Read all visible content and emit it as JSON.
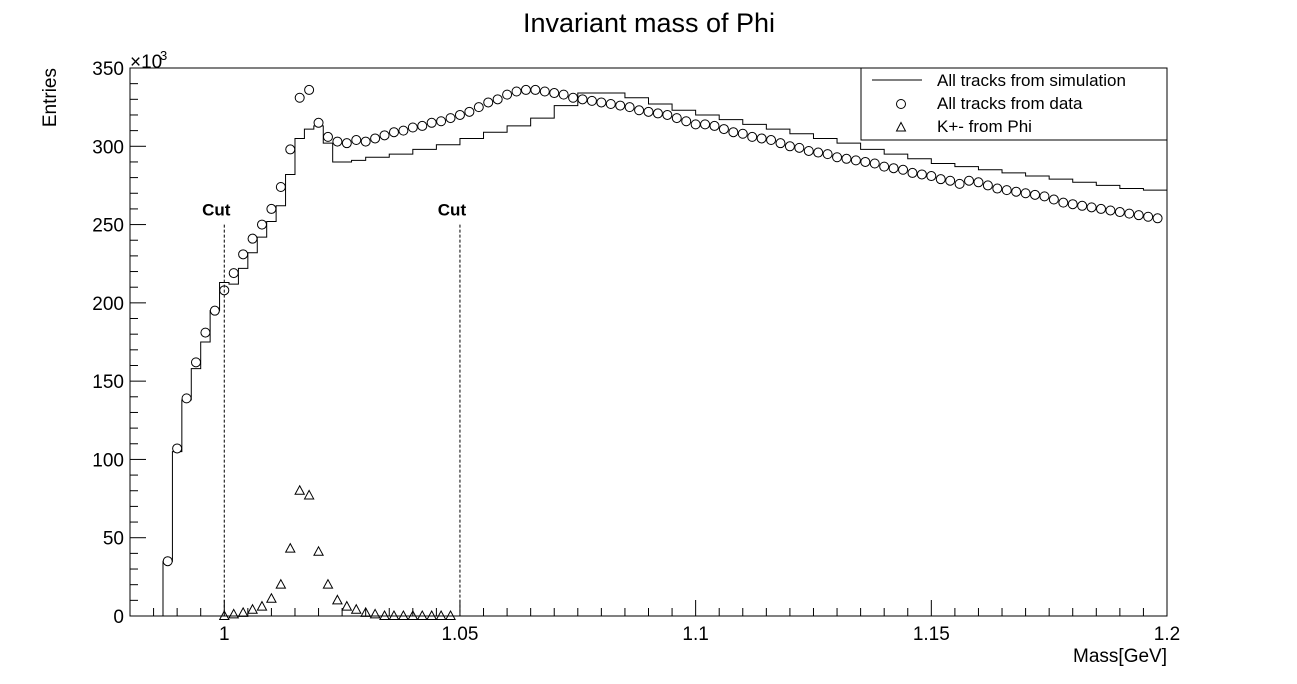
{
  "chart_data": {
    "type": "scatter",
    "title": "Invariant mass of Phi",
    "xlabel": "Mass[GeV]",
    "ylabel": "Entries",
    "y_exponent_label": "×10",
    "y_exponent": "3",
    "xlim": [
      0.98,
      1.2
    ],
    "ylim": [
      0,
      350
    ],
    "x_ticks": [
      1,
      1.05,
      1.1,
      1.15,
      1.2
    ],
    "x_tick_labels": [
      "1",
      "1.05",
      "1.1",
      "1.15",
      "1.2"
    ],
    "y_ticks": [
      0,
      50,
      100,
      150,
      200,
      250,
      300,
      350
    ],
    "y_tick_labels": [
      "0",
      "50",
      "100",
      "150",
      "200",
      "250",
      "300",
      "350"
    ],
    "grid": false,
    "legend_position": "top-right",
    "cut_lines": [
      {
        "x": 1.0,
        "y_top": 250,
        "label": "Cut"
      },
      {
        "x": 1.05,
        "y_top": 250,
        "label": "Cut"
      }
    ],
    "bin_edges": [
      0.987,
      0.989,
      0.991,
      0.993,
      0.995,
      0.997,
      0.999,
      1.001,
      1.003,
      1.005,
      1.007,
      1.009,
      1.011,
      1.013,
      1.015,
      1.017,
      1.019,
      1.021,
      1.023,
      1.025,
      1.027,
      1.03,
      1.035,
      1.04,
      1.045,
      1.05,
      1.055,
      1.06,
      1.065,
      1.07,
      1.075,
      1.08,
      1.085,
      1.09,
      1.095,
      1.1,
      1.105,
      1.11,
      1.115,
      1.12,
      1.125,
      1.13,
      1.135,
      1.14,
      1.145,
      1.15,
      1.155,
      1.16,
      1.165,
      1.17,
      1.175,
      1.18,
      1.185,
      1.19,
      1.195,
      1.2
    ],
    "series": [
      {
        "name": "All tracks from simulation",
        "style": "step-line",
        "values": [
          35,
          105,
          138,
          158,
          175,
          195,
          213,
          212,
          222,
          232,
          242,
          252,
          262,
          282,
          305,
          311,
          313,
          302,
          290,
          290,
          291,
          293,
          295,
          298,
          301,
          305,
          309,
          313,
          318,
          326,
          334,
          334,
          331,
          327,
          323,
          320,
          317,
          314,
          311,
          308,
          305,
          302,
          298,
          295,
          292,
          289,
          287,
          285,
          283,
          281,
          279,
          277,
          275,
          273,
          272
        ]
      },
      {
        "name": "All tracks from data",
        "style": "circle",
        "x": [
          0.988,
          0.99,
          0.992,
          0.994,
          0.996,
          0.998,
          1.0,
          1.002,
          1.004,
          1.006,
          1.008,
          1.01,
          1.012,
          1.014,
          1.016,
          1.018,
          1.02,
          1.022,
          1.024,
          1.026,
          1.028,
          1.03,
          1.032,
          1.034,
          1.036,
          1.038,
          1.04,
          1.042,
          1.044,
          1.046,
          1.048,
          1.05,
          1.052,
          1.054,
          1.056,
          1.058,
          1.06,
          1.062,
          1.064,
          1.066,
          1.068,
          1.07,
          1.072,
          1.074,
          1.076,
          1.078,
          1.08,
          1.082,
          1.084,
          1.086,
          1.088,
          1.09,
          1.092,
          1.094,
          1.096,
          1.098,
          1.1,
          1.102,
          1.104,
          1.106,
          1.108,
          1.11,
          1.112,
          1.114,
          1.116,
          1.118,
          1.12,
          1.122,
          1.124,
          1.126,
          1.128,
          1.13,
          1.132,
          1.134,
          1.136,
          1.138,
          1.14,
          1.142,
          1.144,
          1.146,
          1.148,
          1.15,
          1.152,
          1.154,
          1.156,
          1.158,
          1.16,
          1.162,
          1.164,
          1.166,
          1.168,
          1.17,
          1.172,
          1.174,
          1.176,
          1.178,
          1.18,
          1.182,
          1.184,
          1.186,
          1.188,
          1.19,
          1.192,
          1.194,
          1.196,
          1.198
        ],
        "values": [
          35,
          107,
          139,
          162,
          181,
          195,
          208,
          219,
          231,
          241,
          250,
          260,
          274,
          298,
          331,
          336,
          315,
          306,
          303,
          302,
          304,
          303,
          305,
          307,
          309,
          310,
          312,
          313,
          315,
          316,
          318,
          320,
          322,
          325,
          328,
          330,
          333,
          335,
          336,
          336,
          335,
          334,
          333,
          331,
          330,
          329,
          328,
          327,
          326,
          325,
          323,
          322,
          321,
          320,
          318,
          316,
          314,
          314,
          313,
          311,
          309,
          308,
          306,
          305,
          304,
          302,
          300,
          299,
          297,
          296,
          295,
          293,
          292,
          291,
          290,
          289,
          287,
          286,
          285,
          283,
          282,
          281,
          279,
          278,
          276,
          278,
          277,
          275,
          273,
          272,
          271,
          270,
          269,
          268,
          266,
          264,
          263,
          262,
          261,
          260,
          259,
          258,
          257,
          256,
          255,
          254
        ]
      },
      {
        "name": "K+- from Phi",
        "style": "triangle",
        "x": [
          1.0,
          1.002,
          1.004,
          1.006,
          1.008,
          1.01,
          1.012,
          1.014,
          1.016,
          1.018,
          1.02,
          1.022,
          1.024,
          1.026,
          1.028,
          1.03,
          1.032,
          1.034,
          1.036,
          1.038,
          1.04,
          1.042,
          1.044,
          1.046,
          1.048
        ],
        "values": [
          0,
          1,
          2,
          4,
          6,
          11,
          20,
          43,
          80,
          77,
          41,
          20,
          10,
          6,
          4,
          2,
          1,
          0,
          0,
          0,
          0,
          0,
          0,
          0,
          0
        ]
      }
    ]
  }
}
